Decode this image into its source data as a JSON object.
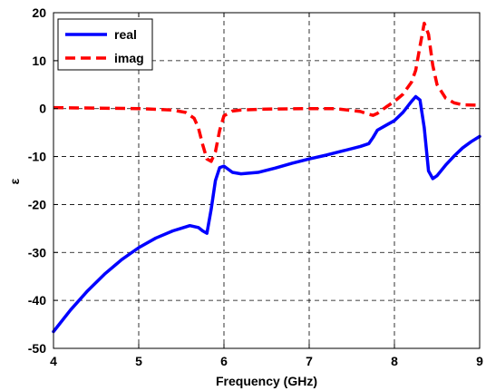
{
  "chart_data": {
    "type": "line",
    "title": "",
    "xlabel": "Frequency (GHz)",
    "ylabel": "ε",
    "xlim": [
      4,
      9
    ],
    "ylim": [
      -50,
      20
    ],
    "xticks": [
      4,
      5,
      6,
      7,
      8,
      9
    ],
    "yticks": [
      -50,
      -40,
      -30,
      -20,
      -10,
      0,
      10,
      20
    ],
    "grid": true,
    "grid_style": "dashed",
    "legend_position": "top-left",
    "series": [
      {
        "name": "real",
        "color": "#0000ff",
        "line_style": "solid",
        "x": [
          4.0,
          4.2,
          4.4,
          4.6,
          4.8,
          5.0,
          5.2,
          5.4,
          5.6,
          5.7,
          5.75,
          5.8,
          5.85,
          5.9,
          5.95,
          6.0,
          6.1,
          6.2,
          6.4,
          6.6,
          6.8,
          7.0,
          7.2,
          7.4,
          7.6,
          7.7,
          7.75,
          7.8,
          7.9,
          8.0,
          8.1,
          8.2,
          8.25,
          8.3,
          8.35,
          8.4,
          8.45,
          8.5,
          8.6,
          8.7,
          8.8,
          8.9,
          9.0
        ],
        "y": [
          -46.5,
          -42.0,
          -38.0,
          -34.5,
          -31.5,
          -29.0,
          -27.0,
          -25.5,
          -24.4,
          -24.8,
          -25.5,
          -26.0,
          -21.0,
          -15.0,
          -12.3,
          -12.0,
          -13.3,
          -13.6,
          -13.3,
          -12.4,
          -11.4,
          -10.5,
          -9.7,
          -8.8,
          -7.9,
          -7.3,
          -6.0,
          -4.5,
          -3.5,
          -2.5,
          -0.8,
          1.5,
          2.5,
          1.8,
          -4.0,
          -13.0,
          -14.6,
          -14.0,
          -11.8,
          -9.9,
          -8.2,
          -6.9,
          -5.8
        ]
      },
      {
        "name": "imag",
        "color": "#ff0000",
        "line_style": "dashed",
        "x": [
          4.0,
          4.5,
          5.0,
          5.4,
          5.55,
          5.65,
          5.7,
          5.75,
          5.8,
          5.85,
          5.9,
          5.95,
          6.0,
          6.1,
          6.2,
          6.5,
          7.0,
          7.3,
          7.6,
          7.7,
          7.75,
          7.8,
          7.9,
          8.0,
          8.1,
          8.2,
          8.25,
          8.3,
          8.35,
          8.4,
          8.45,
          8.5,
          8.6,
          8.7,
          8.8,
          9.0
        ],
        "y": [
          0.2,
          0.1,
          0.0,
          -0.3,
          -0.8,
          -2.0,
          -4.0,
          -7.5,
          -10.5,
          -11.0,
          -9.0,
          -4.5,
          -1.5,
          -0.5,
          -0.3,
          -0.1,
          0.0,
          0.0,
          -0.6,
          -1.2,
          -1.4,
          -1.0,
          0.3,
          1.5,
          3.0,
          5.5,
          8.0,
          13.0,
          17.8,
          15.5,
          9.0,
          5.0,
          2.2,
          1.2,
          0.8,
          0.7
        ]
      }
    ]
  }
}
